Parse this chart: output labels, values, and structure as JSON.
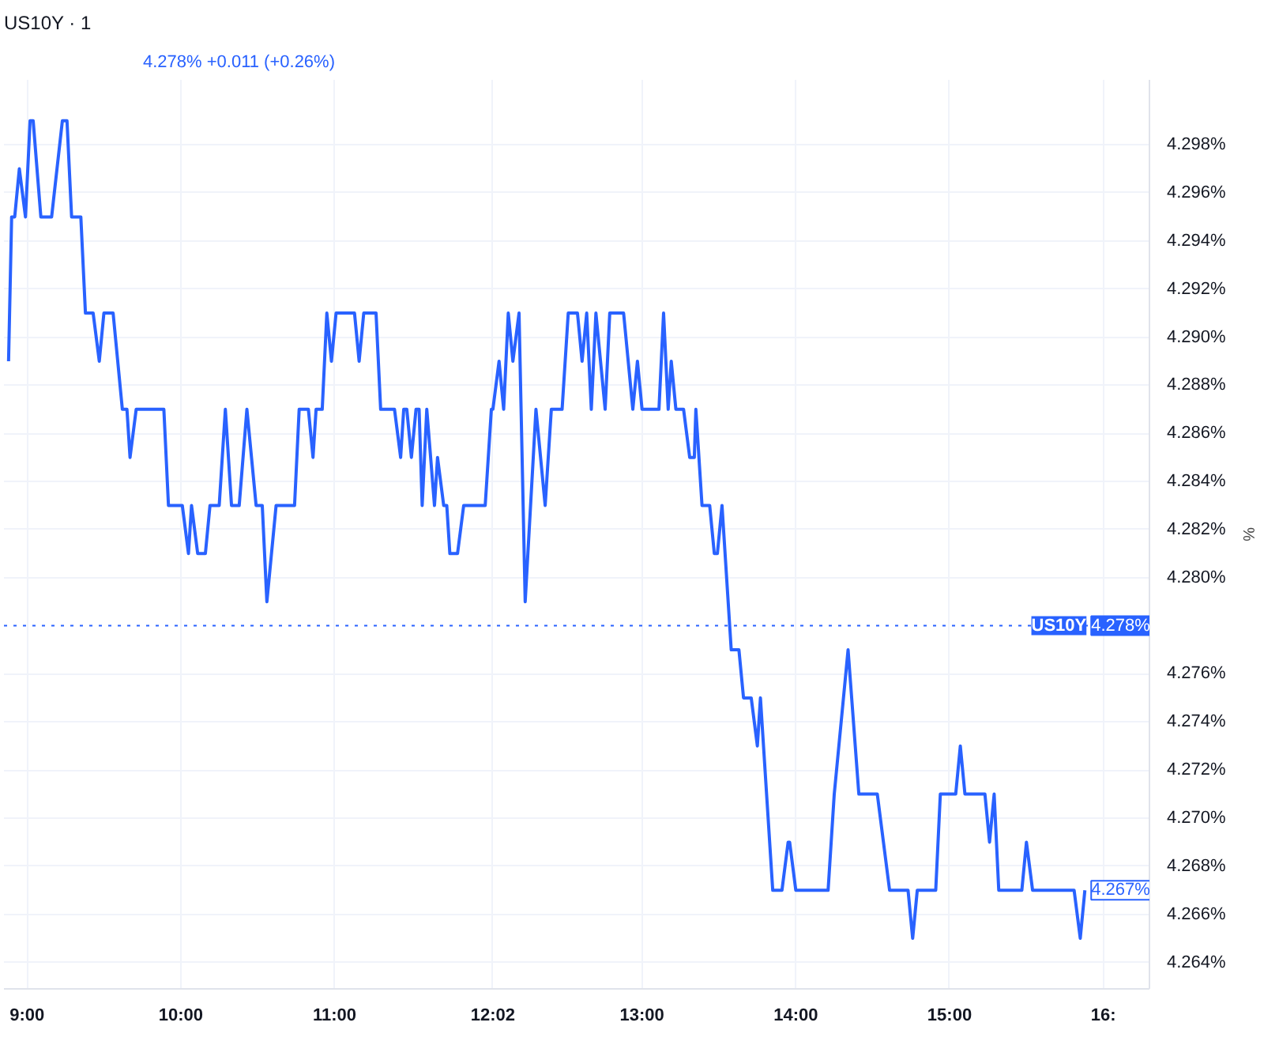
{
  "chart_data": {
    "type": "line",
    "title": "US10Y · 1",
    "subtitle": "4.278% +0.011 (+0.26%)",
    "ylabel": "%",
    "x": [
      8.88,
      8.9,
      8.92,
      8.95,
      8.99,
      9.02,
      9.04,
      9.09,
      9.16,
      9.23,
      9.26,
      9.29,
      9.35,
      9.38,
      9.43,
      9.47,
      9.5,
      9.56,
      9.62,
      9.65,
      9.67,
      9.71,
      9.89,
      9.92,
      10.01,
      10.05,
      10.07,
      10.11,
      10.16,
      10.19,
      10.25,
      10.29,
      10.33,
      10.38,
      10.43,
      10.49,
      10.53,
      10.56,
      10.62,
      10.74,
      10.77,
      10.83,
      10.86,
      10.88,
      10.92,
      10.95,
      10.98,
      11.01,
      11.13,
      11.16,
      11.19,
      11.27,
      11.3,
      11.39,
      11.43,
      11.45,
      11.47,
      11.5,
      11.53,
      11.55,
      11.57,
      11.6,
      11.65,
      11.67,
      11.71,
      11.73,
      11.75,
      11.8,
      11.84,
      11.98,
      12.02,
      12.03,
      12.07,
      12.1,
      12.13,
      12.16,
      12.2,
      12.24,
      12.31,
      12.37,
      12.41,
      12.48,
      12.52,
      12.58,
      12.61,
      12.64,
      12.67,
      12.7,
      12.76,
      12.79,
      12.88,
      12.94,
      12.97,
      13.0,
      13.11,
      13.14,
      13.17,
      13.19,
      13.22,
      13.27,
      13.31,
      13.34,
      13.35,
      13.39,
      13.44,
      13.47,
      13.49,
      13.52,
      13.58,
      13.63,
      13.66,
      13.71,
      13.75,
      13.77,
      13.85,
      13.91,
      13.95,
      13.96,
      14.0,
      14.21,
      14.25,
      14.34,
      14.41,
      14.53,
      14.61,
      14.73,
      14.76,
      14.79,
      14.91,
      14.94,
      15.04,
      15.07,
      15.1,
      15.23,
      15.26,
      15.29,
      15.32,
      15.47,
      15.5,
      15.54,
      15.81,
      15.85,
      15.88
    ],
    "series": [
      {
        "color": "#2962ff",
        "values": [
          4.289,
          4.295,
          4.295,
          4.297,
          4.295,
          4.299,
          4.299,
          4.295,
          4.295,
          4.299,
          4.299,
          4.295,
          4.295,
          4.291,
          4.291,
          4.289,
          4.291,
          4.291,
          4.287,
          4.287,
          4.285,
          4.287,
          4.287,
          4.283,
          4.283,
          4.281,
          4.283,
          4.281,
          4.281,
          4.283,
          4.283,
          4.287,
          4.283,
          4.283,
          4.287,
          4.283,
          4.283,
          4.279,
          4.283,
          4.283,
          4.287,
          4.287,
          4.285,
          4.287,
          4.287,
          4.291,
          4.289,
          4.291,
          4.291,
          4.289,
          4.291,
          4.291,
          4.287,
          4.287,
          4.285,
          4.287,
          4.287,
          4.285,
          4.287,
          4.287,
          4.283,
          4.287,
          4.283,
          4.285,
          4.283,
          4.283,
          4.281,
          4.281,
          4.283,
          4.283,
          4.287,
          4.287,
          4.289,
          4.287,
          4.291,
          4.289,
          4.291,
          4.279,
          4.287,
          4.283,
          4.287,
          4.287,
          4.291,
          4.291,
          4.289,
          4.291,
          4.287,
          4.291,
          4.287,
          4.291,
          4.291,
          4.287,
          4.289,
          4.287,
          4.287,
          4.291,
          4.287,
          4.289,
          4.287,
          4.287,
          4.285,
          4.285,
          4.287,
          4.283,
          4.283,
          4.281,
          4.281,
          4.283,
          4.277,
          4.277,
          4.275,
          4.275,
          4.273,
          4.275,
          4.267,
          4.267,
          4.269,
          4.269,
          4.267,
          4.267,
          4.271,
          4.277,
          4.271,
          4.271,
          4.267,
          4.267,
          4.265,
          4.267,
          4.267,
          4.271,
          4.271,
          4.273,
          4.271,
          4.271,
          4.269,
          4.271,
          4.267,
          4.267,
          4.269,
          4.267,
          4.267,
          4.265,
          4.267
        ]
      }
    ],
    "xlim": [
      8.85,
      16.3
    ],
    "xticks": [
      {
        "value": 9,
        "label": "9:00"
      },
      {
        "value": 10,
        "label": "10:00"
      },
      {
        "value": 11,
        "label": "11:00"
      },
      {
        "value": 12.03,
        "label": "12:02"
      },
      {
        "value": 13,
        "label": "13:00"
      },
      {
        "value": 14,
        "label": "14:00"
      },
      {
        "value": 15,
        "label": "15:00"
      },
      {
        "value": 16,
        "label": "16:"
      }
    ],
    "ylim": [
      4.2629,
      4.3007
    ],
    "yticks": [
      {
        "value": 4.264,
        "label": "4.264%"
      },
      {
        "value": 4.266,
        "label": "4.266%"
      },
      {
        "value": 4.268,
        "label": "4.268%"
      },
      {
        "value": 4.27,
        "label": "4.270%"
      },
      {
        "value": 4.272,
        "label": "4.272%"
      },
      {
        "value": 4.274,
        "label": "4.274%"
      },
      {
        "value": 4.276,
        "label": "4.276%"
      },
      {
        "value": 4.28,
        "label": "4.280%"
      },
      {
        "value": 4.282,
        "label": "4.282%"
      },
      {
        "value": 4.284,
        "label": "4.284%"
      },
      {
        "value": 4.286,
        "label": "4.286%"
      },
      {
        "value": 4.288,
        "label": "4.288%"
      },
      {
        "value": 4.29,
        "label": "4.290%"
      },
      {
        "value": 4.292,
        "label": "4.292%"
      },
      {
        "value": 4.294,
        "label": "4.294%"
      },
      {
        "value": 4.296,
        "label": "4.296%"
      },
      {
        "value": 4.298,
        "label": "4.298%"
      }
    ],
    "ref_lines": [
      {
        "axis": "y",
        "value": 4.278,
        "label": "US10Y",
        "color": "#2962ff",
        "line_style": "dotted"
      }
    ],
    "annotations": [
      {
        "text": "4.278%",
        "x": 15.88,
        "y": 4.278
      },
      {
        "text": "4.267%",
        "x": 15.88,
        "y": 4.267
      }
    ],
    "grid": true,
    "marker": "none",
    "line_style": "solid"
  }
}
